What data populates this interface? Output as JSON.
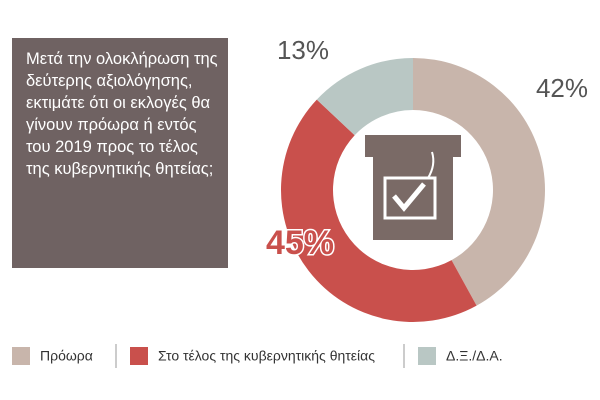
{
  "chart_data": {
    "type": "pie",
    "donut": true,
    "title": "Μετά την ολοκλήρωση της δεύτερης αξιολόγησης, εκτιμάτε ότι οι εκλογές θα γίνουν πρόωρα ή εντός του 2019 προς το τέλος της κυβερνητικής θητείας;",
    "categories": [
      "Πρόωρα",
      "Στο τέλος της κυβερνητικής θητείας",
      "Δ.Ξ./Δ.Α."
    ],
    "values": [
      42,
      45,
      13
    ],
    "value_labels": [
      "42%",
      "45%",
      "13%"
    ],
    "colors": [
      "#c8b5ab",
      "#c9504c",
      "#b9c7c4"
    ],
    "legend": "bottom"
  }
}
